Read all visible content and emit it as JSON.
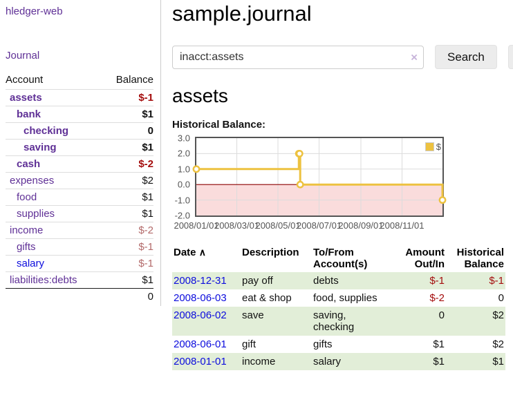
{
  "app": {
    "brand": "hledger-web",
    "nav": {
      "journal": "Journal"
    }
  },
  "sidebar": {
    "table_headers": {
      "account": "Account",
      "balance": "Balance"
    },
    "accounts": [
      {
        "name": "assets",
        "balance": "$-1"
      },
      {
        "name": "bank",
        "balance": "$1"
      },
      {
        "name": "checking",
        "balance": "0"
      },
      {
        "name": "saving",
        "balance": "$1"
      },
      {
        "name": "cash",
        "balance": "$-2"
      },
      {
        "name": "expenses",
        "balance": "$2"
      },
      {
        "name": "food",
        "balance": "$1"
      },
      {
        "name": "supplies",
        "balance": "$1"
      },
      {
        "name": "income",
        "balance": "$-2"
      },
      {
        "name": "gifts",
        "balance": "$-1"
      },
      {
        "name": "salary",
        "balance": "$-1"
      },
      {
        "name": "liabilities:debts",
        "balance": "$1"
      }
    ],
    "total_balance": "0"
  },
  "header": {
    "title": "sample.journal"
  },
  "search": {
    "value": "inacct:assets",
    "clear_icon": "×",
    "search_button": "Search",
    "help_button": "?"
  },
  "account_page": {
    "heading": "assets",
    "chart_title": "Historical Balance:"
  },
  "chart_data": {
    "type": "line",
    "title": "Historical Balance",
    "step": true,
    "grid": true,
    "legend": {
      "label": "$",
      "position": "top-right"
    },
    "series": [
      {
        "name": "$",
        "color": "#edc240",
        "points": [
          [
            "2008-01-01",
            1
          ],
          [
            "2008-06-01",
            2
          ],
          [
            "2008-06-02",
            2
          ],
          [
            "2008-06-03",
            0
          ],
          [
            "2008-12-31",
            -1
          ]
        ]
      }
    ],
    "x_range": [
      "2008-01-01",
      "2008-12-31"
    ],
    "ylim": [
      -2,
      3
    ],
    "y_ticks": [
      "3.0",
      "2.0",
      "1.0",
      "0.0",
      "-1.0",
      "-2.0"
    ],
    "x_ticks": [
      "2008/01/01",
      "2008/03/01",
      "2008/05/01",
      "2008/07/01",
      "2008/09/01",
      "2008/11/01"
    ],
    "negative_region_color": "#fadcdc",
    "zero_line_color": "#8b0000",
    "plot_border_color": "#545454",
    "gridline_color": "#dcdcdc"
  },
  "transactions": {
    "headers": {
      "date": "Date",
      "sort_indicator": "∧",
      "description": "Description",
      "accounts": "To/From Account(s)",
      "amount": "Amount Out/In",
      "balance": "Historical Balance"
    },
    "rows": [
      {
        "date": "2008-12-31",
        "description": "pay off",
        "accounts": "debts",
        "amount": "$-1",
        "balance": "$-1"
      },
      {
        "date": "2008-06-03",
        "description": "eat & shop",
        "accounts": "food, supplies",
        "amount": "$-2",
        "balance": "0"
      },
      {
        "date": "2008-06-02",
        "description": "save",
        "accounts": "saving, checking",
        "amount": "0",
        "balance": "$2"
      },
      {
        "date": "2008-06-01",
        "description": "gift",
        "accounts": "gifts",
        "amount": "$1",
        "balance": "$2"
      },
      {
        "date": "2008-01-01",
        "description": "income",
        "accounts": "salary",
        "amount": "$1",
        "balance": "$1"
      }
    ]
  },
  "colors": {
    "purple_link": "#5f3096",
    "blue_link": "#0c0cdd",
    "negative_red": "#a40d0d",
    "muted_negative_rose": "#b36a6a",
    "row_highlight_green": "#e2eed8",
    "series_gold": "#edc240"
  }
}
